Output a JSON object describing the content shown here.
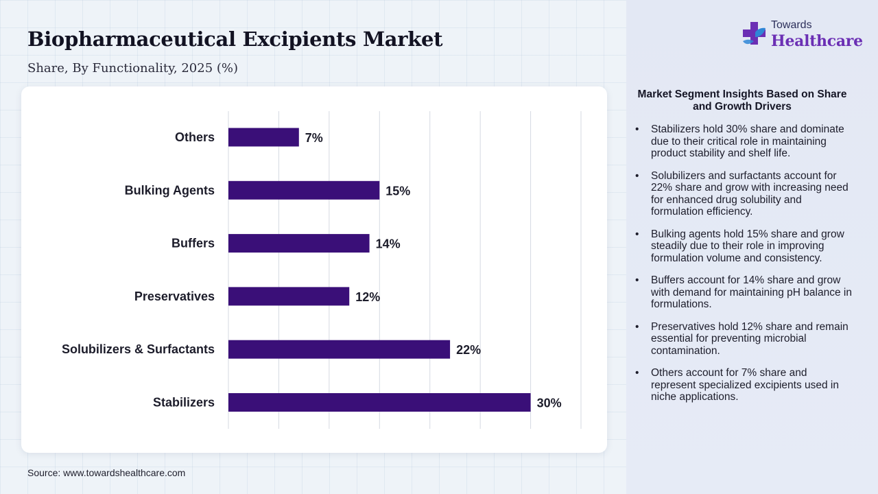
{
  "header": {
    "title": "Biopharmaceutical Excipients Market",
    "subtitle": "Share, By Functionality, 2025 (%)"
  },
  "logo": {
    "top_text": "Towards",
    "main_text": "Healthcare",
    "icon": "cross-logo-icon"
  },
  "source": "Source: www.towardshealthcare.com",
  "insights": {
    "title": "Market Segment Insights Based on Share and Growth Drivers",
    "bullet": "•",
    "items": [
      "Stabilizers hold 30% share and dominate due to their critical role in maintaining product stability and shelf life.",
      "Solubilizers and surfactants account for 22% share and grow with increasing need for enhanced drug solubility and formulation efficiency.",
      "Bulking agents hold 15% share and grow steadily due to their role in improving formulation volume and consistency.",
      "Buffers account for 14% share and grow with demand for maintaining pH balance in formulations.",
      "Preservatives hold 12% share and remain essential for preventing microbial contamination.",
      "Others account for 7% share and represent specialized excipients used in niche applications."
    ]
  },
  "colors": {
    "bar": "#3a0f78",
    "logo_purple": "#6b2fb4",
    "logo_blue": "#2f86d6",
    "background": "#eef3f8",
    "sidebar": "#e4e9f5"
  },
  "chart_data": {
    "type": "bar",
    "orientation": "horizontal",
    "categories": [
      "Others",
      "Bulking Agents",
      "Buffers",
      "Preservatives",
      "Solubilizers & Surfactants",
      "Stabilizers"
    ],
    "values": [
      7,
      15,
      14,
      12,
      22,
      30
    ],
    "data_labels": [
      "7%",
      "15%",
      "14%",
      "12%",
      "22%",
      "30%"
    ],
    "xlim": [
      0,
      35
    ],
    "grid_step": 5,
    "grid": true,
    "legend": false
  }
}
